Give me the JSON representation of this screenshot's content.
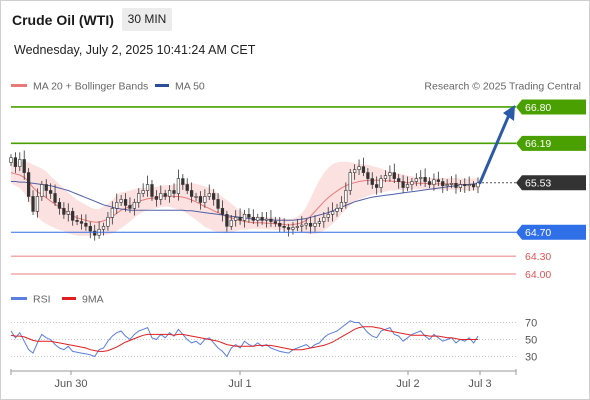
{
  "header": {
    "title": "Crude Oil (WTI)",
    "timeframe": "30 MIN",
    "datetime": "Wednesday, July 2, 2025 10:41:24 AM CET"
  },
  "legend": {
    "ma20": "MA 20 + Bollinger Bands",
    "ma50": "MA 50",
    "credit": "Research © 2025 Trading Central",
    "rsi": "RSI",
    "rsi_ma": "9MA"
  },
  "colors": {
    "resistance": "#4aa000",
    "pivot": "#2f6fe8",
    "support": "#e05555",
    "current": "#333333",
    "arrow": "#2a5aa8",
    "ma20": "#e97a7a",
    "ma50": "#5060a8",
    "band": "#fbd7d7",
    "rsi": "#5a7fe0",
    "rsi_ma": "#e02020"
  },
  "chart_data": [
    {
      "type": "candlestick",
      "title": "Crude Oil (WTI)",
      "timeframe": "30 MIN",
      "x_ticks": [
        "Jun 30",
        "Jul 1",
        "Jul 2",
        "Jul 3"
      ],
      "ylim": [
        63.9,
        66.95
      ],
      "levels": [
        {
          "label": "66.80",
          "value": 66.8,
          "kind": "resistance"
        },
        {
          "label": "66.19",
          "value": 66.19,
          "kind": "resistance"
        },
        {
          "label": "65.53",
          "value": 65.53,
          "kind": "current"
        },
        {
          "label": "64.70",
          "value": 64.7,
          "kind": "pivot"
        },
        {
          "label": "64.30",
          "value": 64.3,
          "kind": "support"
        },
        {
          "label": "64.00",
          "value": 64.0,
          "kind": "support"
        }
      ],
      "close": [
        65.95,
        65.8,
        65.92,
        65.7,
        65.3,
        65.05,
        65.3,
        65.5,
        65.4,
        65.35,
        65.2,
        65.1,
        65.0,
        65.05,
        64.9,
        64.88,
        64.85,
        64.8,
        64.72,
        64.65,
        64.75,
        64.8,
        64.95,
        65.1,
        65.2,
        65.25,
        65.15,
        65.1,
        65.2,
        65.35,
        65.4,
        65.5,
        65.3,
        65.25,
        65.35,
        65.3,
        65.4,
        65.35,
        65.6,
        65.5,
        65.4,
        65.3,
        65.3,
        65.2,
        65.3,
        65.35,
        65.25,
        65.1,
        65.0,
        64.8,
        64.9,
        64.95,
        64.9,
        65.0,
        64.95,
        64.9,
        64.95,
        64.9,
        64.92,
        64.88,
        64.85,
        64.8,
        64.78,
        64.75,
        64.78,
        64.8,
        64.82,
        64.85,
        64.8,
        64.85,
        64.88,
        64.95,
        65.0,
        65.05,
        65.1,
        65.2,
        65.4,
        65.7,
        65.75,
        65.8,
        65.7,
        65.6,
        65.5,
        65.45,
        65.6,
        65.65,
        65.7,
        65.6,
        65.55,
        65.45,
        65.5,
        65.55,
        65.6,
        65.62,
        65.55,
        65.5,
        65.58,
        65.55,
        65.48,
        65.5,
        65.52,
        65.45,
        65.5,
        65.48,
        65.5,
        65.46,
        65.53
      ],
      "ma20": [
        65.7,
        65.68,
        65.66,
        65.62,
        65.55,
        65.45,
        65.38,
        65.33,
        65.28,
        65.22,
        65.17,
        65.12,
        65.08,
        65.02,
        64.98,
        64.94,
        64.92,
        64.9,
        64.88,
        64.87,
        64.87,
        64.89,
        64.92,
        64.96,
        65.02,
        65.07,
        65.1,
        65.14,
        65.18,
        65.22,
        65.24,
        65.26,
        65.27,
        65.28,
        65.3,
        65.31,
        65.31,
        65.3,
        65.3,
        65.29,
        65.27,
        65.24,
        65.21,
        65.17,
        65.13,
        65.1,
        65.06,
        65.03,
        64.99,
        64.96,
        64.94,
        64.92,
        64.9,
        64.88,
        64.87,
        64.86,
        64.86,
        64.86,
        64.85,
        64.85,
        64.84,
        64.84,
        64.83,
        64.82,
        64.83,
        64.84,
        64.86,
        64.9,
        64.97,
        65.05,
        65.13,
        65.21,
        65.28,
        65.34,
        65.39,
        65.44,
        65.48,
        65.51,
        65.53,
        65.55,
        65.56,
        65.57,
        65.57,
        65.57,
        65.57,
        65.56,
        65.56,
        65.55,
        65.55,
        65.54,
        65.53,
        65.53,
        65.52,
        65.52,
        65.52,
        65.51,
        65.51,
        65.51,
        65.51,
        65.51,
        65.51,
        65.51,
        65.5,
        65.5,
        65.5,
        65.5,
        65.51
      ],
      "ma50": [
        65.55,
        65.55,
        65.54,
        65.54,
        65.53,
        65.52,
        65.51,
        65.5,
        65.49,
        65.48,
        65.46,
        65.44,
        65.42,
        65.4,
        65.37,
        65.34,
        65.31,
        65.28,
        65.25,
        65.22,
        65.19,
        65.16,
        65.14,
        65.12,
        65.1,
        65.09,
        65.08,
        65.07,
        65.07,
        65.07,
        65.07,
        65.07,
        65.07,
        65.07,
        65.07,
        65.07,
        65.07,
        65.07,
        65.07,
        65.07,
        65.06,
        65.06,
        65.05,
        65.04,
        65.03,
        65.02,
        65.01,
        65.0,
        64.99,
        64.98,
        64.97,
        64.96,
        64.95,
        64.94,
        64.93,
        64.92,
        64.91,
        64.91,
        64.91,
        64.91,
        64.9,
        64.9,
        64.9,
        64.9,
        64.9,
        64.91,
        64.92,
        64.93,
        64.95,
        64.97,
        64.99,
        65.01,
        65.03,
        65.06,
        65.09,
        65.12,
        65.15,
        65.18,
        65.21,
        65.23,
        65.25,
        65.27,
        65.29,
        65.3,
        65.31,
        65.32,
        65.33,
        65.34,
        65.35,
        65.36,
        65.37,
        65.38,
        65.39,
        65.4,
        65.41,
        65.42,
        65.43,
        65.44,
        65.45,
        65.46,
        65.47,
        65.48,
        65.49,
        65.5,
        65.5,
        65.51,
        65.52
      ],
      "band_width": [
        0.18,
        0.2,
        0.22,
        0.26,
        0.32,
        0.38,
        0.42,
        0.44,
        0.44,
        0.42,
        0.4,
        0.38,
        0.36,
        0.34,
        0.32,
        0.3,
        0.28,
        0.26,
        0.24,
        0.22,
        0.22,
        0.24,
        0.26,
        0.28,
        0.3,
        0.3,
        0.28,
        0.26,
        0.24,
        0.22,
        0.2,
        0.18,
        0.18,
        0.18,
        0.18,
        0.18,
        0.18,
        0.2,
        0.22,
        0.24,
        0.26,
        0.28,
        0.3,
        0.32,
        0.34,
        0.34,
        0.34,
        0.32,
        0.3,
        0.28,
        0.24,
        0.2,
        0.16,
        0.14,
        0.12,
        0.1,
        0.1,
        0.1,
        0.1,
        0.1,
        0.1,
        0.1,
        0.1,
        0.1,
        0.1,
        0.12,
        0.16,
        0.22,
        0.3,
        0.38,
        0.44,
        0.48,
        0.5,
        0.5,
        0.48,
        0.44,
        0.4,
        0.36,
        0.32,
        0.3,
        0.28,
        0.26,
        0.24,
        0.22,
        0.2,
        0.18,
        0.16,
        0.15,
        0.14,
        0.13,
        0.12,
        0.11,
        0.1,
        0.1,
        0.1,
        0.1,
        0.1,
        0.1,
        0.1,
        0.1,
        0.1,
        0.1,
        0.1,
        0.1,
        0.1,
        0.1,
        0.1
      ],
      "projection": {
        "from": 65.53,
        "to": 66.8
      }
    },
    {
      "type": "line",
      "series": [
        {
          "name": "RSI",
          "values": [
            60,
            52,
            58,
            48,
            38,
            34,
            46,
            56,
            52,
            50,
            44,
            40,
            38,
            42,
            36,
            35,
            34,
            33,
            32,
            30,
            38,
            40,
            48,
            54,
            58,
            60,
            54,
            50,
            56,
            60,
            62,
            64,
            52,
            50,
            56,
            52,
            58,
            54,
            62,
            56,
            50,
            46,
            48,
            44,
            50,
            52,
            46,
            40,
            36,
            30,
            40,
            44,
            40,
            48,
            44,
            42,
            46,
            42,
            44,
            40,
            38,
            36,
            35,
            34,
            38,
            40,
            42,
            44,
            40,
            44,
            46,
            52,
            56,
            58,
            60,
            64,
            68,
            72,
            70,
            70,
            64,
            58,
            54,
            52,
            60,
            62,
            64,
            56,
            54,
            48,
            52,
            56,
            58,
            60,
            54,
            50,
            56,
            52,
            48,
            50,
            52,
            46,
            50,
            48,
            52,
            46,
            54
          ]
        },
        {
          "name": "9MA",
          "values": [
            55,
            54,
            54,
            53,
            51,
            49,
            48,
            48,
            48,
            48,
            47,
            46,
            45,
            44,
            43,
            42,
            41,
            40,
            38,
            37,
            36,
            36,
            37,
            39,
            41,
            44,
            47,
            49,
            51,
            53,
            55,
            56,
            56,
            56,
            56,
            56,
            56,
            55,
            56,
            56,
            55,
            54,
            53,
            52,
            51,
            50,
            49,
            48,
            46,
            44,
            43,
            42,
            42,
            42,
            42,
            42,
            43,
            43,
            43,
            43,
            42,
            41,
            40,
            39,
            38,
            38,
            38,
            39,
            40,
            41,
            42,
            43,
            45,
            47,
            50,
            53,
            56,
            59,
            62,
            64,
            65,
            65,
            65,
            64,
            63,
            61,
            60,
            59,
            58,
            57,
            56,
            55,
            55,
            55,
            55,
            54,
            54,
            54,
            53,
            52,
            52,
            51,
            50,
            50,
            50,
            50,
            50
          ]
        }
      ],
      "yticks": [
        "70",
        "50",
        "30"
      ],
      "ylim": [
        20,
        80
      ]
    }
  ]
}
